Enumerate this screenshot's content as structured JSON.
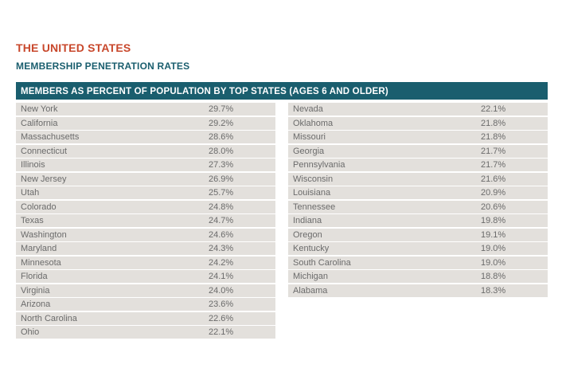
{
  "header": {
    "title": "THE UNITED STATES",
    "subtitle": "MEMBERSHIP PENETRATION RATES"
  },
  "table": {
    "banner": "MEMBERS AS PERCENT OF POPULATION BY TOP STATES (AGES 6 AND OLDER)",
    "left": [
      {
        "state": "New York",
        "pct": "29.7%"
      },
      {
        "state": "California",
        "pct": "29.2%"
      },
      {
        "state": "Massachusetts",
        "pct": "28.6%"
      },
      {
        "state": "Connecticut",
        "pct": "28.0%"
      },
      {
        "state": "Illinois",
        "pct": "27.3%"
      },
      {
        "state": "New Jersey",
        "pct": "26.9%"
      },
      {
        "state": "Utah",
        "pct": "25.7%"
      },
      {
        "state": "Colorado",
        "pct": "24.8%"
      },
      {
        "state": "Texas",
        "pct": "24.7%"
      },
      {
        "state": "Washington",
        "pct": "24.6%"
      },
      {
        "state": "Maryland",
        "pct": "24.3%"
      },
      {
        "state": "Minnesota",
        "pct": "24.2%"
      },
      {
        "state": "Florida",
        "pct": "24.1%"
      },
      {
        "state": "Virginia",
        "pct": "24.0%"
      },
      {
        "state": "Arizona",
        "pct": "23.6%"
      },
      {
        "state": "North Carolina",
        "pct": "22.6%"
      },
      {
        "state": "Ohio",
        "pct": "22.1%"
      }
    ],
    "right": [
      {
        "state": "Nevada",
        "pct": "22.1%"
      },
      {
        "state": "Oklahoma",
        "pct": "21.8%"
      },
      {
        "state": "Missouri",
        "pct": "21.8%"
      },
      {
        "state": "Georgia",
        "pct": "21.7%"
      },
      {
        "state": "Pennsylvania",
        "pct": "21.7%"
      },
      {
        "state": "Wisconsin",
        "pct": "21.6%"
      },
      {
        "state": "Louisiana",
        "pct": "20.9%"
      },
      {
        "state": "Tennessee",
        "pct": "20.6%"
      },
      {
        "state": "Indiana",
        "pct": "19.8%"
      },
      {
        "state": "Oregon",
        "pct": "19.1%"
      },
      {
        "state": "Kentucky",
        "pct": "19.0%"
      },
      {
        "state": "South Carolina",
        "pct": "19.0%"
      },
      {
        "state": "Michigan",
        "pct": "18.8%"
      },
      {
        "state": "Alabama",
        "pct": "18.3%"
      }
    ]
  },
  "colors": {
    "title": "#c8472b",
    "accent": "#1a5e6e",
    "row_bg": "#e3e0dc",
    "row_text": "#6b6b6b"
  }
}
